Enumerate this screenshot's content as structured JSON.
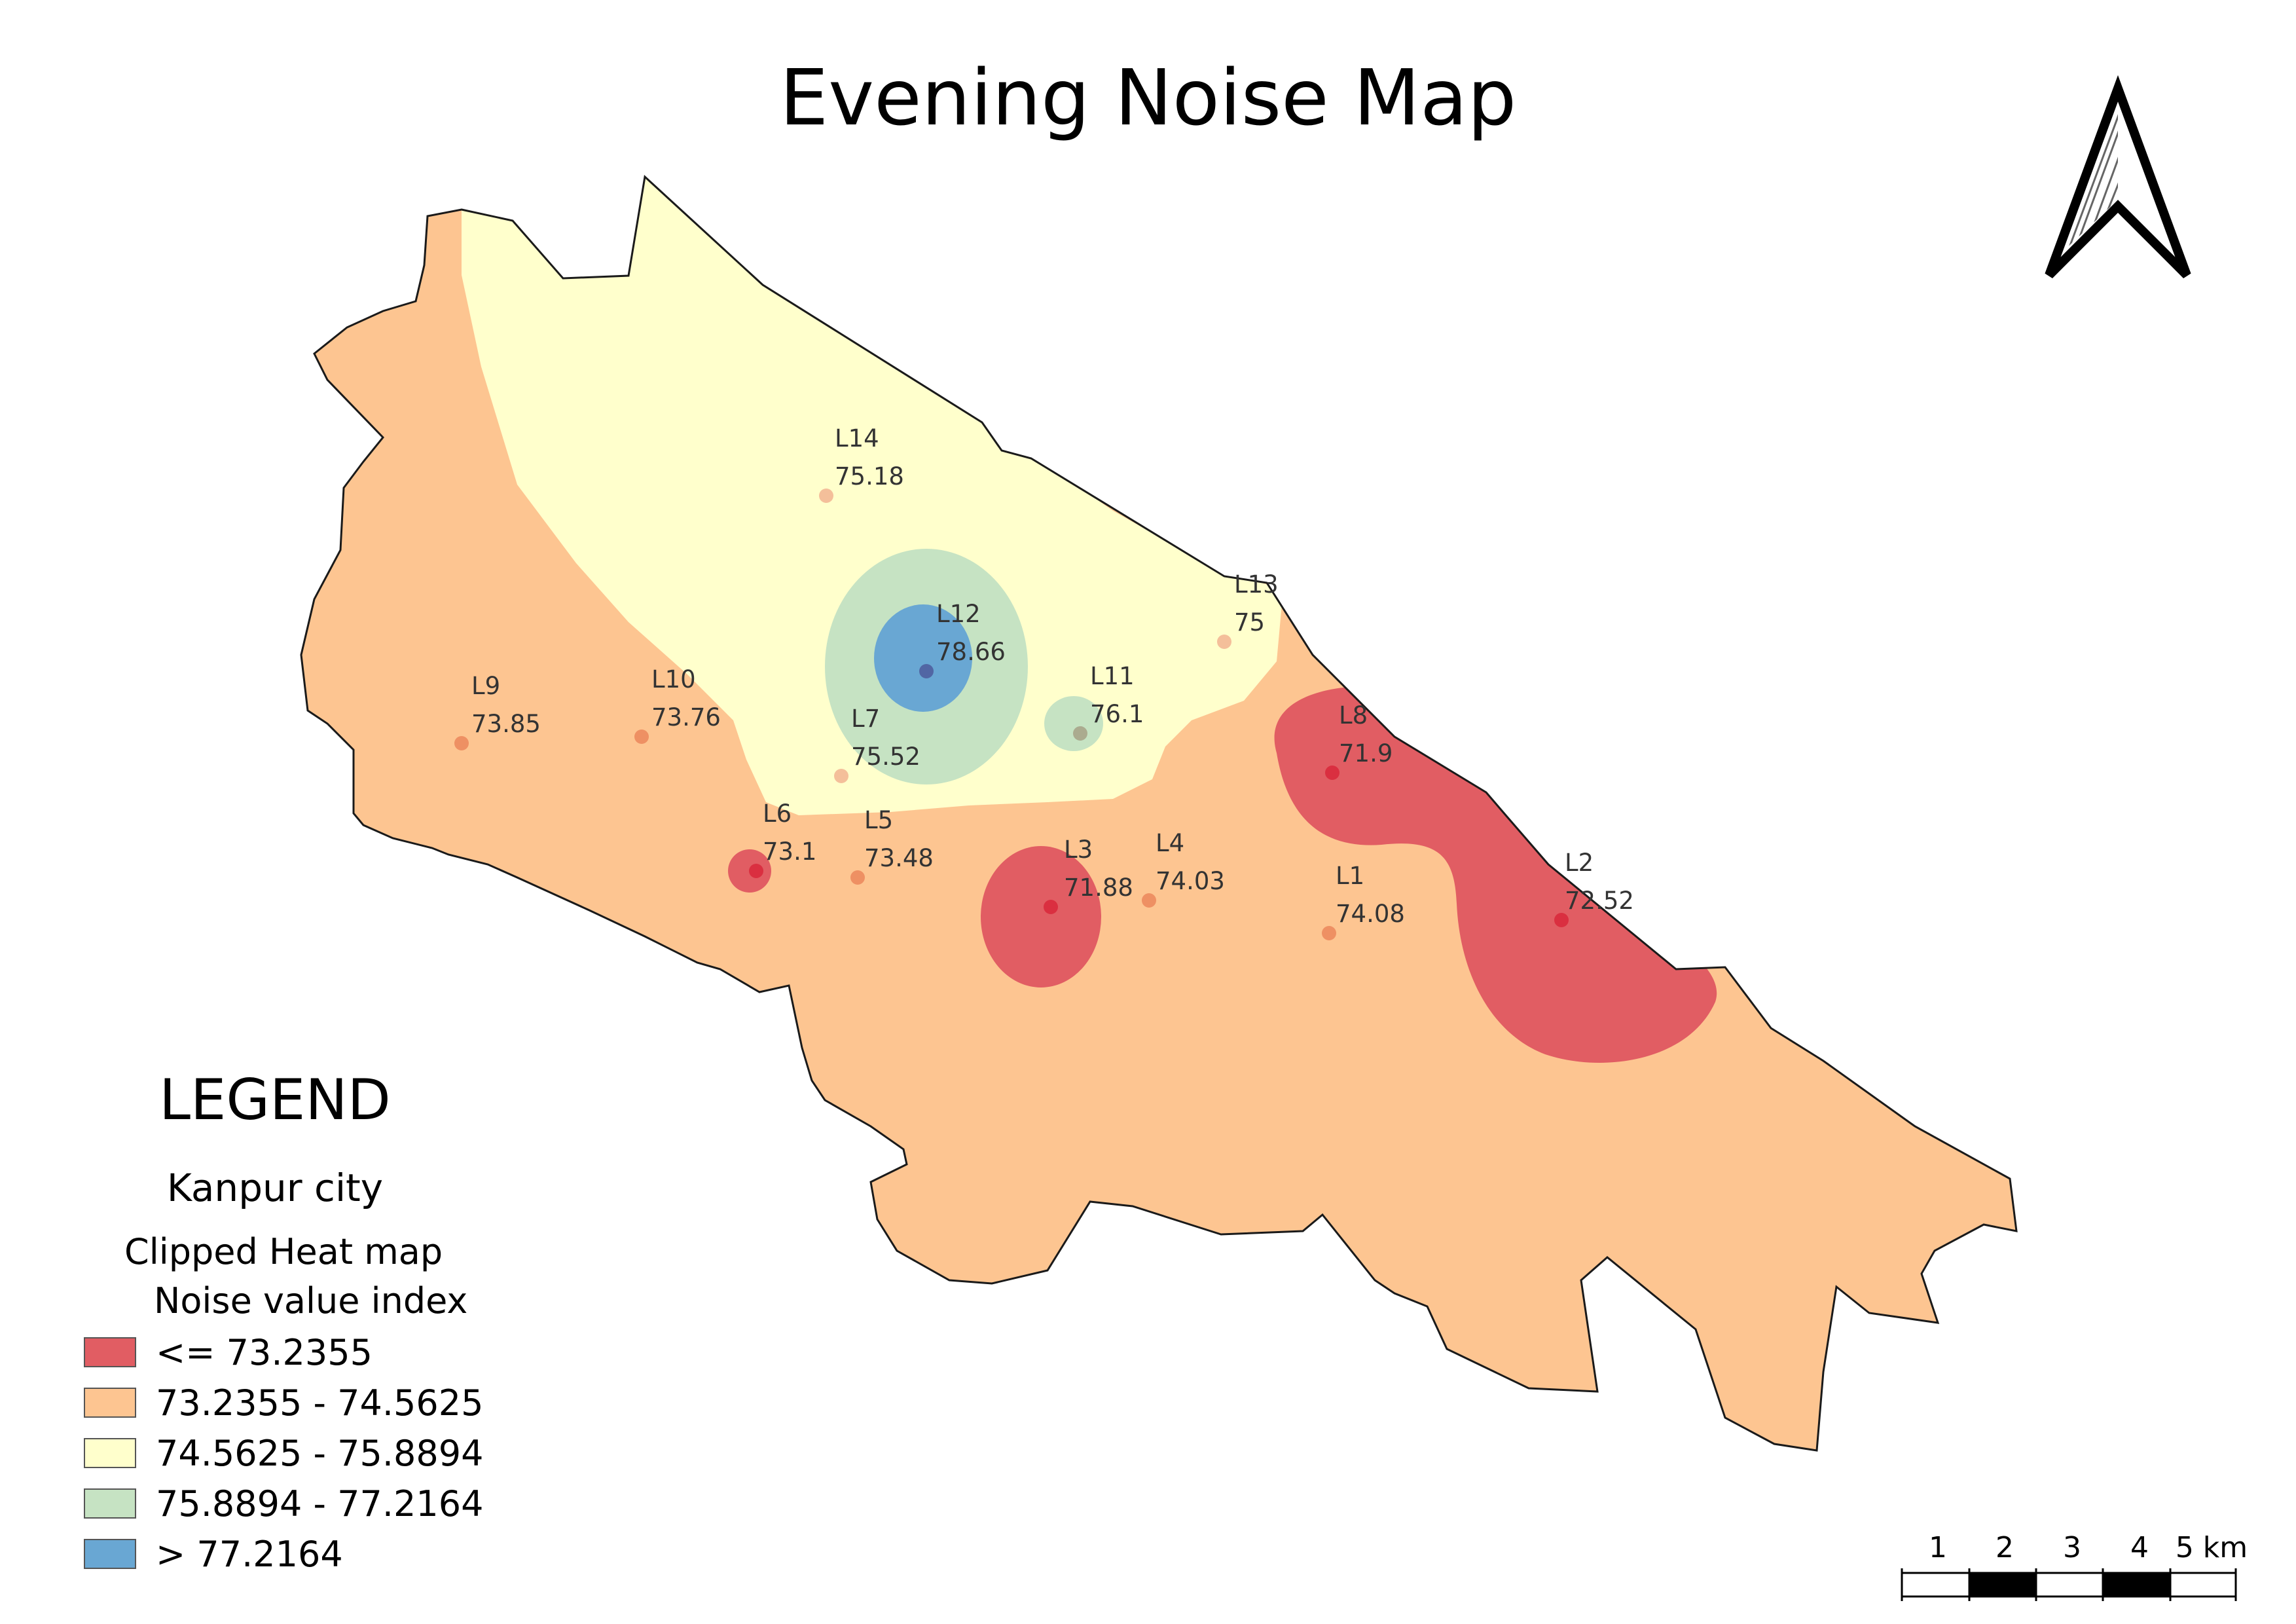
{
  "title": "Evening Noise Map",
  "legend": {
    "heading": "LEGEND",
    "layer": "Kanpur city",
    "sub1": "Clipped Heat map",
    "sub2": "Noise value index",
    "classes": [
      {
        "label": "<= 73.2355",
        "color": "#e15d63"
      },
      {
        "label": "73.2355 - 74.5625",
        "color": "#fdc591"
      },
      {
        "label": "74.5625 - 75.8894",
        "color": "#ffffcc"
      },
      {
        "label": "75.8894 - 77.2164",
        "color": "#c6e3c3"
      },
      {
        "label": "> 77.2164",
        "color": "#69a7d3"
      }
    ]
  },
  "stations": [
    {
      "name": "L1",
      "value": "74.08"
    },
    {
      "name": "L2",
      "value": "72.52"
    },
    {
      "name": "L3",
      "value": "71.88"
    },
    {
      "name": "L4",
      "value": "74.03"
    },
    {
      "name": "L5",
      "value": "73.48"
    },
    {
      "name": "L6",
      "value": "73.1"
    },
    {
      "name": "L7",
      "value": "75.52"
    },
    {
      "name": "L8",
      "value": "71.9"
    },
    {
      "name": "L9",
      "value": "73.85"
    },
    {
      "name": "L10",
      "value": "73.76"
    },
    {
      "name": "L11",
      "value": "76.1"
    },
    {
      "name": "L12",
      "value": "78.66"
    },
    {
      "name": "L13",
      "value": "75"
    },
    {
      "name": "L14",
      "value": "75.18"
    }
  ],
  "scale_bar": {
    "labels": [
      "1",
      "2",
      "3",
      "4",
      "5 km"
    ]
  },
  "north_arrow": "north-arrow-icon"
}
